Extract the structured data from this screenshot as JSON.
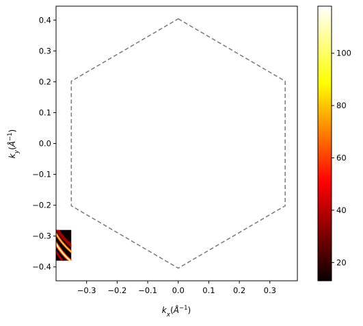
{
  "chart_data": {
    "type": "heatmap",
    "title": "",
    "xlabel": "k_x(Å^{-1})",
    "ylabel": "k_y(Å^{-1})",
    "xlim": [
      -0.4,
      0.39
    ],
    "ylim": [
      -0.445,
      0.445
    ],
    "x_ticks": [
      -0.3,
      -0.2,
      -0.1,
      0.0,
      0.1,
      0.2,
      0.3
    ],
    "x_tick_labels": [
      "−0.3",
      "−0.2",
      "−0.1",
      "0.0",
      "0.1",
      "0.2",
      "0.3"
    ],
    "y_ticks": [
      0.4,
      0.3,
      0.2,
      0.1,
      0.0,
      -0.1,
      -0.2,
      -0.3,
      -0.4
    ],
    "y_tick_labels": [
      "0.4",
      "0.3",
      "0.2",
      "0.1",
      "0.0",
      "−0.1",
      "−0.2",
      "−0.3",
      "−0.4"
    ],
    "grid": false,
    "brillouin_zone": {
      "style": "dashed",
      "color": "#808080",
      "vertices": [
        [
          0.0,
          0.404
        ],
        [
          0.35,
          0.202
        ],
        [
          0.35,
          -0.202
        ],
        [
          0.0,
          -0.404
        ],
        [
          -0.35,
          -0.202
        ],
        [
          -0.35,
          0.202
        ]
      ]
    },
    "heatmap_patch": {
      "x_range": [
        -0.4,
        -0.35
      ],
      "y_range": [
        -0.38,
        -0.28
      ],
      "colormap": "hot"
    },
    "colorbar": {
      "range": [
        13,
        118
      ],
      "ticks": [
        20,
        40,
        60,
        80,
        100
      ],
      "tick_labels": [
        "20",
        "40",
        "60",
        "80",
        "100"
      ]
    }
  }
}
